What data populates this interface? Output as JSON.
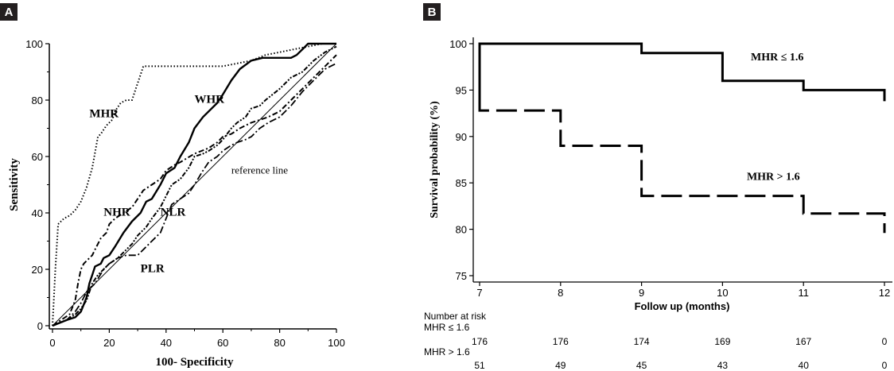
{
  "panels": {
    "a_label": "A",
    "b_label": "B"
  },
  "chart_data": [
    {
      "type": "line",
      "title": "",
      "xlabel": "100- Specificity",
      "ylabel": "Sensitivity",
      "xlim": [
        0,
        100
      ],
      "ylim": [
        0,
        100
      ],
      "xticks": [
        0,
        20,
        40,
        60,
        80,
        100
      ],
      "yticks": [
        0,
        20,
        40,
        60,
        80,
        100
      ],
      "grid": false,
      "annotations": [
        {
          "text": "MHR",
          "x": 13,
          "y": 74
        },
        {
          "text": "WHR",
          "x": 50,
          "y": 79
        },
        {
          "text": "NHR",
          "x": 18,
          "y": 39
        },
        {
          "text": "NLR",
          "x": 38,
          "y": 39
        },
        {
          "text": "PLR",
          "x": 31,
          "y": 19
        },
        {
          "text": "reference line",
          "x": 63,
          "y": 54
        }
      ],
      "series": [
        {
          "key": "MHR",
          "style": "dotted",
          "x": [
            0,
            1,
            2,
            4,
            6,
            8,
            10,
            12,
            14,
            16,
            17,
            19,
            21,
            22,
            24,
            26,
            28,
            29,
            30,
            31,
            32,
            34,
            36,
            38,
            40,
            45,
            50,
            60,
            70,
            75,
            80,
            85,
            90,
            95,
            100
          ],
          "y": [
            0,
            20,
            36,
            38,
            39,
            41,
            44,
            49,
            56,
            67,
            68,
            71,
            73,
            76,
            79,
            80,
            80,
            83,
            86,
            89,
            92,
            92,
            92,
            92,
            92,
            92,
            92,
            92,
            94,
            96,
            97,
            98,
            99,
            100,
            100
          ]
        },
        {
          "key": "WHR",
          "style": "solid",
          "x": [
            0,
            5,
            8,
            10,
            12,
            13,
            14,
            15,
            17,
            18,
            20,
            22,
            25,
            28,
            31,
            33,
            35,
            38,
            40,
            43,
            45,
            48,
            50,
            53,
            55,
            58,
            60,
            63,
            66,
            70,
            74,
            80,
            84,
            86,
            88,
            90,
            95,
            100
          ],
          "y": [
            0,
            2,
            3,
            5,
            10,
            15,
            18,
            21,
            22,
            24,
            25,
            28,
            33,
            37,
            40,
            44,
            45,
            50,
            54,
            56,
            60,
            65,
            70,
            74,
            76,
            79,
            82,
            87,
            91,
            94,
            95,
            95,
            95,
            96,
            98,
            100,
            100,
            100
          ]
        },
        {
          "key": "NHR",
          "style": "dash-dot",
          "x": [
            0,
            3,
            6,
            8,
            9,
            10,
            11,
            12,
            14,
            15,
            17,
            19,
            20,
            22,
            25,
            28,
            30,
            32,
            35,
            38,
            40,
            43,
            45,
            50,
            55,
            58,
            60,
            63,
            66,
            70,
            73,
            76,
            80,
            84,
            88,
            92,
            96,
            100
          ],
          "y": [
            0,
            2,
            4,
            9,
            15,
            20,
            22,
            23,
            25,
            27,
            31,
            33,
            36,
            38,
            40,
            42,
            45,
            48,
            50,
            52,
            55,
            57,
            58,
            61,
            63,
            65,
            67,
            68,
            70,
            72,
            73,
            74,
            76,
            80,
            84,
            88,
            92,
            96
          ]
        },
        {
          "key": "NLR",
          "style": "dash-dot-dot",
          "x": [
            0,
            5,
            8,
            10,
            12,
            14,
            16,
            18,
            20,
            23,
            25,
            28,
            30,
            33,
            35,
            38,
            40,
            42,
            45,
            48,
            50,
            53,
            55,
            58,
            60,
            63,
            65,
            68,
            70,
            73,
            75,
            80,
            84,
            88,
            92,
            96,
            100
          ],
          "y": [
            0,
            2,
            4,
            6,
            9,
            15,
            18,
            20,
            22,
            24,
            26,
            29,
            32,
            35,
            38,
            42,
            46,
            50,
            52,
            56,
            60,
            61,
            62,
            64,
            66,
            70,
            72,
            74,
            77,
            78,
            80,
            84,
            88,
            90,
            94,
            97,
            99
          ]
        },
        {
          "key": "PLR",
          "style": "dash-dot-long",
          "x": [
            0,
            5,
            8,
            10,
            12,
            15,
            18,
            20,
            23,
            26,
            28,
            30,
            33,
            35,
            38,
            40,
            42,
            45,
            48,
            50,
            53,
            55,
            58,
            60,
            63,
            65,
            68,
            70,
            73,
            76,
            80,
            84,
            88,
            92,
            96,
            100
          ],
          "y": [
            0,
            2,
            5,
            8,
            12,
            15,
            20,
            22,
            24,
            25,
            25,
            25,
            28,
            30,
            33,
            38,
            43,
            45,
            47,
            50,
            55,
            58,
            60,
            62,
            64,
            65,
            66,
            67,
            70,
            72,
            74,
            78,
            83,
            87,
            91,
            93
          ]
        },
        {
          "key": "reference",
          "style": "thin",
          "x": [
            0,
            100
          ],
          "y": [
            0,
            100
          ]
        }
      ]
    },
    {
      "type": "line",
      "title": "",
      "xlabel": "Follow up (months)",
      "ylabel": "Survival probability (%)",
      "xlim": [
        7,
        12
      ],
      "ylim": [
        75,
        100
      ],
      "xticks": [
        7,
        8,
        9,
        10,
        11,
        12
      ],
      "yticks": [
        75,
        80,
        85,
        90,
        95,
        100
      ],
      "grid": false,
      "annotations": [
        {
          "text": "MHR ≤ 1.6",
          "x": 10.35,
          "y": 98.2
        },
        {
          "text": "MHR > 1.6",
          "x": 10.3,
          "y": 85.3
        }
      ],
      "series": [
        {
          "key": "low",
          "style": "solid",
          "x": [
            7,
            7,
            9,
            9,
            10,
            10,
            11,
            11,
            12,
            12
          ],
          "y": [
            93.8,
            100,
            100,
            99,
            99,
            96,
            96,
            95,
            95,
            93.8
          ]
        },
        {
          "key": "high",
          "style": "dashed",
          "x": [
            7,
            7,
            8,
            8,
            9,
            9,
            11,
            11,
            12,
            12
          ],
          "y": [
            100,
            92.8,
            92.8,
            89,
            89,
            83.6,
            83.6,
            81.7,
            81.7,
            79.6
          ]
        }
      ],
      "risk_table": {
        "header": "Number at risk",
        "rows": [
          {
            "label": "MHR ≤ 1.6",
            "values": [
              "176",
              "176",
              "174",
              "169",
              "167",
              "0"
            ]
          },
          {
            "label": "MHR > 1.6",
            "values": [
              "51",
              "49",
              "45",
              "43",
              "40",
              "0"
            ]
          }
        ]
      }
    }
  ]
}
